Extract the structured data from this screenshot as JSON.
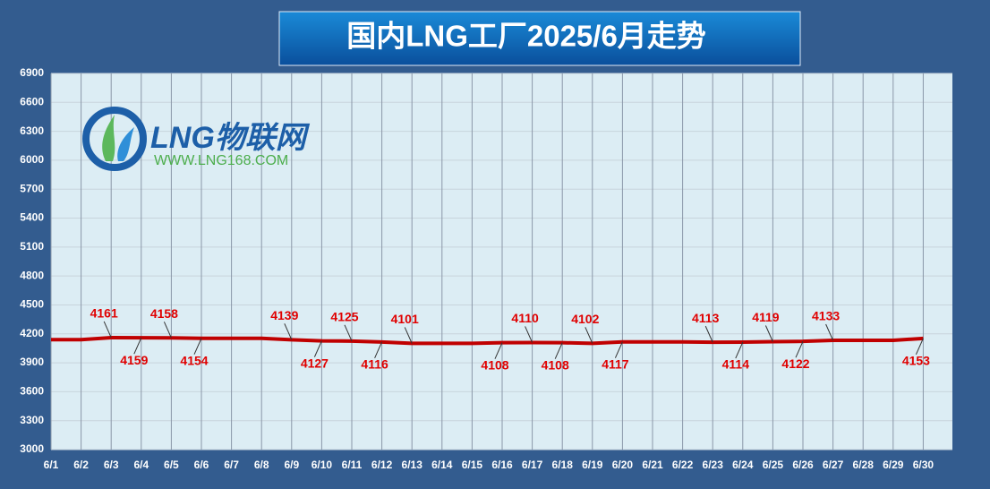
{
  "chart_data": {
    "type": "line",
    "title": "国内LNG工厂2025/6月走势",
    "logo": {
      "name": "LNG物联网",
      "url": "WWW.LNG168.COM"
    },
    "categories": [
      "6/1",
      "6/2",
      "6/3",
      "6/4",
      "6/5",
      "6/6",
      "6/7",
      "6/8",
      "6/9",
      "6/10",
      "6/11",
      "6/12",
      "6/13",
      "6/14",
      "6/15",
      "6/16",
      "6/17",
      "6/18",
      "6/19",
      "6/20",
      "6/21",
      "6/22",
      "6/23",
      "6/24",
      "6/25",
      "6/26",
      "6/27",
      "6/28",
      "6/29",
      "6/30"
    ],
    "series": [
      {
        "color": "#c00000",
        "values": [
          4140,
          4140,
          4161,
          4159,
          4158,
          4154,
          4154,
          4154,
          4139,
          4127,
          4125,
          4116,
          4101,
          4101,
          4101,
          4108,
          4110,
          4108,
          4102,
          4117,
          4117,
          4117,
          4113,
          4114,
          4119,
          4122,
          4133,
          4133,
          4133,
          4153
        ],
        "value_labels": [
          null,
          null,
          "4161",
          "4159",
          "4158",
          "4154",
          null,
          null,
          "4139",
          "4127",
          "4125",
          "4116",
          "4101",
          null,
          null,
          "4108",
          "4110",
          "4108",
          "4102",
          "4117",
          null,
          null,
          "4113",
          "4114",
          "4119",
          "4122",
          "4133",
          null,
          null,
          "4153"
        ]
      }
    ],
    "ylim": [
      3000,
      6900
    ],
    "yticks": [
      3000,
      3300,
      3600,
      3900,
      4200,
      4500,
      4800,
      5100,
      5400,
      5700,
      6000,
      6300,
      6600,
      6900
    ],
    "grid": true
  }
}
